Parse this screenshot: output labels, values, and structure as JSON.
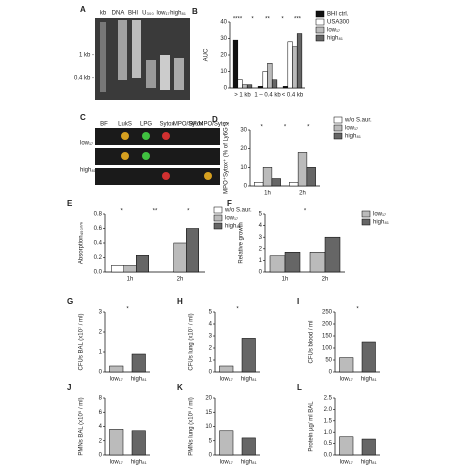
{
  "panel_a": {
    "letter": "A",
    "lanes": [
      "kb",
      "DNA",
      "BHI",
      "U₃₀₀",
      "low₁₇",
      "high₈₁"
    ],
    "sizes": [
      "1 kb -",
      "0.4 kb -"
    ]
  },
  "panel_c": {
    "letter": "C",
    "channels": [
      "BF",
      "LukS",
      "LPG",
      "Sytox",
      "MPO/Sytox",
      "BF/MPO/Sytox"
    ],
    "rows": [
      "low₁₇",
      "high₈₁"
    ]
  },
  "chart_data": [
    {
      "type": "bar",
      "panel": "B",
      "ylabel": "AUC",
      "categories": [
        "> 1 kb",
        "1 – 0.4 kb",
        "< 0.4 kb"
      ],
      "series": [
        {
          "name": "BHI ctrl.",
          "color": "#111111",
          "values": [
            29,
            1,
            1
          ]
        },
        {
          "name": "USA300",
          "color": "#ffffff",
          "values": [
            5,
            10,
            28
          ]
        },
        {
          "name": "low₁₇",
          "color": "#bbbbbb",
          "values": [
            2,
            15,
            25
          ]
        },
        {
          "name": "high₈₁",
          "color": "#666666",
          "values": [
            2,
            5,
            33
          ]
        }
      ],
      "ylim": [
        0,
        40
      ],
      "yticks": [
        0,
        10,
        20,
        30,
        40
      ],
      "annotations": [
        "****",
        "*",
        "**",
        "*",
        "***"
      ]
    },
    {
      "type": "bar",
      "panel": "D",
      "ylabel": "MPO⁺Sytox⁺ (% of Ly6G⁺)",
      "categories": [
        "1h",
        "2h"
      ],
      "series": [
        {
          "name": "w/o S.aur.",
          "color": "#ffffff",
          "values": [
            2,
            2
          ]
        },
        {
          "name": "low₁₇",
          "color": "#bbbbbb",
          "values": [
            10,
            18
          ]
        },
        {
          "name": "high₈₁",
          "color": "#666666",
          "values": [
            4,
            10
          ]
        }
      ],
      "ylim": [
        0,
        30
      ],
      "yticks": [
        0,
        10,
        20,
        30
      ],
      "annotations": [
        "*",
        "*",
        "*"
      ]
    },
    {
      "type": "bar",
      "panel": "E",
      "ylabel": "Absorption₄₅₀ₙₘ",
      "categories": [
        "1h",
        "2h"
      ],
      "series": [
        {
          "name": "w/o S.aur.",
          "color": "#ffffff",
          "values": [
            0.09,
            null
          ]
        },
        {
          "name": "low₁₇",
          "color": "#bbbbbb",
          "values": [
            0.09,
            0.4
          ]
        },
        {
          "name": "high₈₁",
          "color": "#666666",
          "values": [
            0.23,
            0.6
          ]
        }
      ],
      "ylim": [
        0,
        0.8
      ],
      "yticks": [
        {
          "value": 0,
          "label": "0.0"
        },
        0.2,
        0.4,
        0.6,
        0.8
      ],
      "annotations": [
        "*",
        "**",
        "*"
      ]
    },
    {
      "type": "bar",
      "panel": "F",
      "ylabel": "Relative growth",
      "categories": [
        "1h",
        "2h"
      ],
      "series": [
        {
          "name": "low₁₇",
          "color": "#bbbbbb",
          "values": [
            1.4,
            1.7
          ]
        },
        {
          "name": "high₈₁",
          "color": "#666666",
          "values": [
            1.7,
            3.0
          ]
        }
      ],
      "ylim": [
        0,
        5
      ],
      "yticks": [
        0,
        1,
        2,
        3,
        4,
        5
      ],
      "annotations": [
        "*"
      ]
    },
    {
      "type": "bar",
      "panel": "G",
      "ylabel": "CFUs BAL (x10⁷ / ml)",
      "categories": [
        "low₁₇",
        "high₈₁"
      ],
      "values": [
        0.3,
        0.9
      ],
      "colors": [
        "#bbbbbb",
        "#666666"
      ],
      "ylim": [
        0,
        3
      ],
      "yticks": [
        0,
        1,
        2,
        3
      ],
      "annotations": [
        "*"
      ]
    },
    {
      "type": "bar",
      "panel": "H",
      "ylabel": "CFUs lung (x10⁷ / ml)",
      "categories": [
        "low₁₇",
        "high₈₁"
      ],
      "values": [
        0.5,
        2.8
      ],
      "colors": [
        "#bbbbbb",
        "#666666"
      ],
      "ylim": [
        0,
        5
      ],
      "yticks": [
        0,
        1,
        2,
        3,
        4,
        5
      ],
      "annotations": [
        "*"
      ]
    },
    {
      "type": "bar",
      "panel": "I",
      "ylabel": "CFUs blood / ml",
      "categories": [
        "low₁₇",
        "high₈₁"
      ],
      "values": [
        60,
        125
      ],
      "colors": [
        "#bbbbbb",
        "#666666"
      ],
      "ylim": [
        0,
        250
      ],
      "yticks": [
        0,
        50,
        100,
        150,
        200,
        250
      ],
      "annotations": [
        "*"
      ]
    },
    {
      "type": "bar",
      "panel": "J",
      "ylabel": "PMNs BAL (x10⁵ / ml)",
      "categories": [
        "low₁₇",
        "high₈₁"
      ],
      "values": [
        3.6,
        3.4
      ],
      "colors": [
        "#bbbbbb",
        "#666666"
      ],
      "ylim": [
        0,
        8
      ],
      "yticks": [
        0,
        2,
        4,
        6,
        8
      ]
    },
    {
      "type": "bar",
      "panel": "K",
      "ylabel": "PMNs lung (x10⁵ / ml)",
      "categories": [
        "low₁₇",
        "high₈₁"
      ],
      "values": [
        8.5,
        6
      ],
      "colors": [
        "#bbbbbb",
        "#666666"
      ],
      "ylim": [
        0,
        20
      ],
      "yticks": [
        0,
        5,
        10,
        15,
        20
      ]
    },
    {
      "type": "bar",
      "panel": "L",
      "ylabel": "Protein µg/ ml BAL",
      "categories": [
        "low₁₇",
        "high₈₁"
      ],
      "values": [
        0.8,
        0.7
      ],
      "colors": [
        "#bbbbbb",
        "#666666"
      ],
      "ylim": [
        0,
        2.5
      ],
      "yticks": [
        {
          "value": 0,
          "label": "0.0"
        },
        0.5,
        {
          "value": 1,
          "label": "1.0"
        },
        1.5,
        {
          "value": 2,
          "label": "2.0"
        },
        2.5
      ]
    }
  ]
}
